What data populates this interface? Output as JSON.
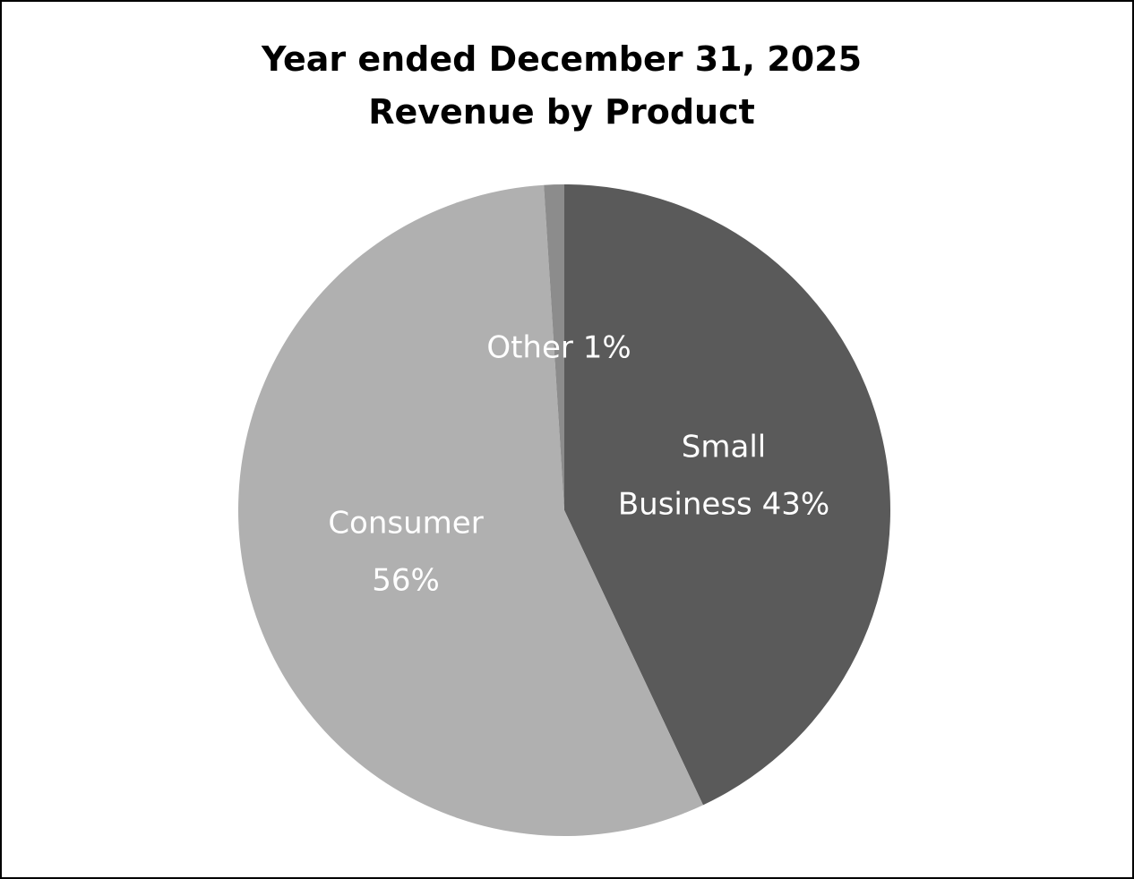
{
  "chart_data": {
    "type": "pie",
    "title": [
      "Year ended December 31, 2025",
      "Revenue by Product"
    ],
    "slices": [
      {
        "label": "Small",
        "label2": "Business 43%",
        "value": 43,
        "color": "#5a5a5a"
      },
      {
        "label": "Consumer",
        "label2": "56%",
        "value": 56,
        "color": "#b0b0b0"
      },
      {
        "label": "Other 1%",
        "label2": "",
        "value": 1,
        "color": "#8c8c8c"
      }
    ]
  }
}
